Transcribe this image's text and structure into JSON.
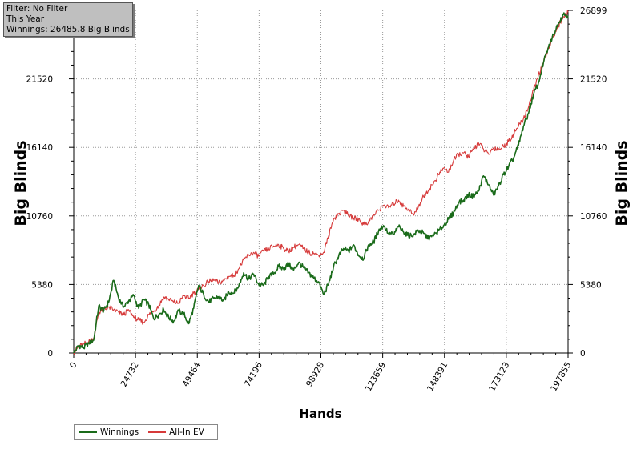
{
  "info": {
    "filter": "Filter: No Filter",
    "period": "This Year",
    "winnings": "Winnings: 26485.8 Big Blinds"
  },
  "chart_data": {
    "type": "line",
    "xlabel": "Hands",
    "ylabel": "Big Blinds",
    "xlim": [
      0,
      197855
    ],
    "ylim": [
      0,
      26899
    ],
    "x_ticks": [
      0,
      24732,
      49464,
      74196,
      98928,
      123659,
      148391,
      173123,
      197855
    ],
    "y_ticks": [
      0,
      5380,
      10760,
      16140,
      21520,
      26899
    ],
    "grid": true,
    "legend_position": "bottom-left",
    "series": [
      {
        "name": "Winnings",
        "color": "#1a6b1a",
        "points": [
          [
            0,
            0
          ],
          [
            2000,
            600
          ],
          [
            4000,
            400
          ],
          [
            6000,
            800
          ],
          [
            8000,
            1000
          ],
          [
            10000,
            3700
          ],
          [
            12000,
            3300
          ],
          [
            14000,
            4000
          ],
          [
            16000,
            5700
          ],
          [
            18000,
            4300
          ],
          [
            20000,
            3600
          ],
          [
            22000,
            4100
          ],
          [
            24000,
            4500
          ],
          [
            26000,
            3500
          ],
          [
            28000,
            4200
          ],
          [
            30000,
            3800
          ],
          [
            32000,
            2700
          ],
          [
            34000,
            3000
          ],
          [
            36000,
            3400
          ],
          [
            38000,
            2800
          ],
          [
            40000,
            2500
          ],
          [
            42000,
            3300
          ],
          [
            44000,
            3100
          ],
          [
            46000,
            2300
          ],
          [
            48000,
            3500
          ],
          [
            50000,
            5300
          ],
          [
            52000,
            4600
          ],
          [
            54000,
            4000
          ],
          [
            56000,
            4300
          ],
          [
            58000,
            4400
          ],
          [
            60000,
            4100
          ],
          [
            62000,
            4800
          ],
          [
            64000,
            4700
          ],
          [
            66000,
            5200
          ],
          [
            68000,
            6300
          ],
          [
            70000,
            5800
          ],
          [
            72000,
            6200
          ],
          [
            74000,
            5400
          ],
          [
            76000,
            5300
          ],
          [
            78000,
            6000
          ],
          [
            80000,
            6200
          ],
          [
            82000,
            6800
          ],
          [
            84000,
            6600
          ],
          [
            86000,
            7000
          ],
          [
            88000,
            6500
          ],
          [
            90000,
            7100
          ],
          [
            92000,
            6700
          ],
          [
            94000,
            6300
          ],
          [
            96000,
            5900
          ],
          [
            98000,
            5600
          ],
          [
            100000,
            4600
          ],
          [
            102000,
            5400
          ],
          [
            104000,
            6800
          ],
          [
            106000,
            7600
          ],
          [
            108000,
            8200
          ],
          [
            110000,
            8000
          ],
          [
            112000,
            8500
          ],
          [
            114000,
            7700
          ],
          [
            116000,
            7400
          ],
          [
            118000,
            8500
          ],
          [
            120000,
            8700
          ],
          [
            122000,
            9600
          ],
          [
            124000,
            10000
          ],
          [
            126000,
            9400
          ],
          [
            128000,
            9300
          ],
          [
            130000,
            9900
          ],
          [
            132000,
            9500
          ],
          [
            134000,
            9200
          ],
          [
            136000,
            9300
          ],
          [
            138000,
            9600
          ],
          [
            140000,
            9400
          ],
          [
            142000,
            9000
          ],
          [
            144000,
            9200
          ],
          [
            146000,
            9600
          ],
          [
            148000,
            10000
          ],
          [
            150000,
            10500
          ],
          [
            152000,
            11000
          ],
          [
            154000,
            11800
          ],
          [
            156000,
            12000
          ],
          [
            158000,
            12400
          ],
          [
            160000,
            12300
          ],
          [
            162000,
            12700
          ],
          [
            164000,
            13900
          ],
          [
            166000,
            13200
          ],
          [
            168000,
            12400
          ],
          [
            170000,
            13100
          ],
          [
            172000,
            14000
          ],
          [
            174000,
            14600
          ],
          [
            176000,
            15300
          ],
          [
            178000,
            16300
          ],
          [
            180000,
            17800
          ],
          [
            182000,
            18800
          ],
          [
            184000,
            20300
          ],
          [
            186000,
            21200
          ],
          [
            188000,
            22800
          ],
          [
            190000,
            24000
          ],
          [
            192000,
            25000
          ],
          [
            194000,
            25900
          ],
          [
            196000,
            26600
          ],
          [
            197855,
            26486
          ]
        ]
      },
      {
        "name": "All-In EV",
        "color": "#d63a3a",
        "points": [
          [
            0,
            0
          ],
          [
            2000,
            500
          ],
          [
            4000,
            700
          ],
          [
            6000,
            900
          ],
          [
            8000,
            1100
          ],
          [
            10000,
            3200
          ],
          [
            12000,
            3400
          ],
          [
            14000,
            3600
          ],
          [
            16000,
            3400
          ],
          [
            18000,
            3200
          ],
          [
            20000,
            3000
          ],
          [
            22000,
            3400
          ],
          [
            24000,
            2800
          ],
          [
            26000,
            2600
          ],
          [
            28000,
            2400
          ],
          [
            30000,
            3000
          ],
          [
            32000,
            3300
          ],
          [
            34000,
            3700
          ],
          [
            36000,
            4400
          ],
          [
            38000,
            4200
          ],
          [
            40000,
            4000
          ],
          [
            42000,
            3900
          ],
          [
            44000,
            4500
          ],
          [
            46000,
            4300
          ],
          [
            48000,
            4700
          ],
          [
            50000,
            5000
          ],
          [
            52000,
            5300
          ],
          [
            54000,
            5600
          ],
          [
            56000,
            5700
          ],
          [
            58000,
            5500
          ],
          [
            60000,
            5700
          ],
          [
            62000,
            6000
          ],
          [
            64000,
            6100
          ],
          [
            66000,
            6600
          ],
          [
            68000,
            7300
          ],
          [
            70000,
            7700
          ],
          [
            72000,
            7900
          ],
          [
            74000,
            7600
          ],
          [
            76000,
            8000
          ],
          [
            78000,
            8200
          ],
          [
            80000,
            8400
          ],
          [
            82000,
            8500
          ],
          [
            84000,
            8200
          ],
          [
            86000,
            8000
          ],
          [
            88000,
            8300
          ],
          [
            90000,
            8500
          ],
          [
            92000,
            8200
          ],
          [
            94000,
            7900
          ],
          [
            96000,
            7800
          ],
          [
            98000,
            7700
          ],
          [
            100000,
            7900
          ],
          [
            102000,
            9200
          ],
          [
            104000,
            10500
          ],
          [
            106000,
            10900
          ],
          [
            108000,
            11200
          ],
          [
            110000,
            10800
          ],
          [
            112000,
            10600
          ],
          [
            114000,
            10500
          ],
          [
            116000,
            10100
          ],
          [
            118000,
            10300
          ],
          [
            120000,
            10800
          ],
          [
            122000,
            11200
          ],
          [
            124000,
            11600
          ],
          [
            126000,
            11400
          ],
          [
            128000,
            11700
          ],
          [
            130000,
            12000
          ],
          [
            132000,
            11500
          ],
          [
            134000,
            11300
          ],
          [
            136000,
            10800
          ],
          [
            138000,
            11500
          ],
          [
            140000,
            12300
          ],
          [
            142000,
            12800
          ],
          [
            144000,
            13300
          ],
          [
            146000,
            14000
          ],
          [
            148000,
            14500
          ],
          [
            150000,
            14200
          ],
          [
            152000,
            15100
          ],
          [
            154000,
            15600
          ],
          [
            156000,
            15700
          ],
          [
            158000,
            15400
          ],
          [
            160000,
            16000
          ],
          [
            162000,
            16500
          ],
          [
            164000,
            16000
          ],
          [
            166000,
            15600
          ],
          [
            168000,
            16100
          ],
          [
            170000,
            16000
          ],
          [
            172000,
            16200
          ],
          [
            174000,
            16600
          ],
          [
            176000,
            17200
          ],
          [
            178000,
            17800
          ],
          [
            180000,
            18400
          ],
          [
            182000,
            19300
          ],
          [
            184000,
            20600
          ],
          [
            186000,
            21800
          ],
          [
            188000,
            22800
          ],
          [
            190000,
            23900
          ],
          [
            192000,
            24900
          ],
          [
            194000,
            25700
          ],
          [
            196000,
            26400
          ],
          [
            197855,
            26750
          ]
        ]
      }
    ]
  }
}
